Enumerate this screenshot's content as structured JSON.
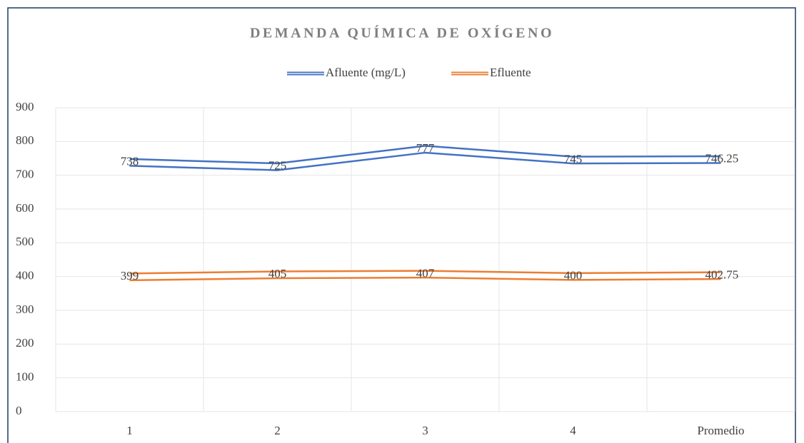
{
  "chart_data": {
    "type": "line",
    "title": "DEMANDA QUÍMICA DE OXÍGENO",
    "categories": [
      "1",
      "2",
      "3",
      "4",
      "Promedio"
    ],
    "series": [
      {
        "name": "Afluente (mg/L)",
        "color": "#4472c4",
        "values": [
          738,
          725,
          777,
          745,
          746.25
        ]
      },
      {
        "name": "Efluente",
        "color": "#ed7d31",
        "values": [
          399,
          405,
          407,
          400,
          402.75
        ]
      }
    ],
    "ylim": [
      0,
      900
    ],
    "yticks": [
      0,
      100,
      200,
      300,
      400,
      500,
      600,
      700,
      800,
      900
    ],
    "grid": true,
    "legend": "top"
  }
}
